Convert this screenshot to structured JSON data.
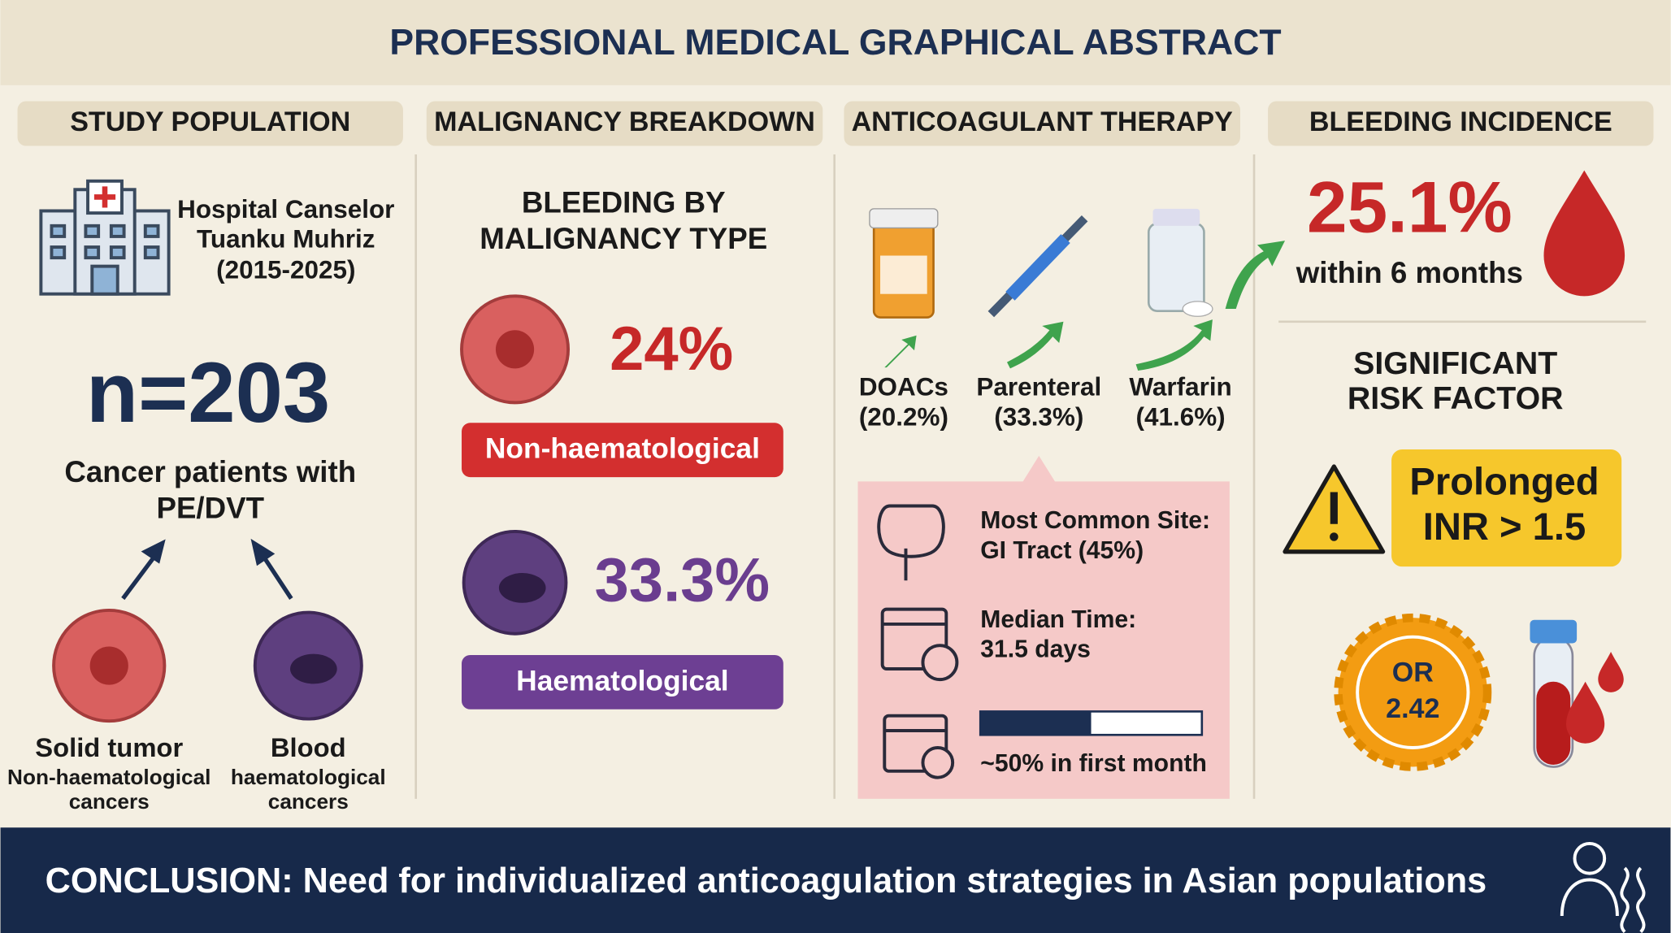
{
  "header": {
    "title": "PROFESSIONAL MEDICAL GRAPHICAL ABSTRACT"
  },
  "panels": [
    {
      "heading": "STUDY POPULATION",
      "hospital": [
        "Hospital Canselor",
        "Tuanku Muhriz",
        "(2015-2025)"
      ],
      "sample": "n=203",
      "description": [
        "Cancer patients with",
        "PE/DVT"
      ],
      "groups": [
        {
          "name": "Solid tumor",
          "detail": [
            "Non-haematological",
            "cancers"
          ]
        },
        {
          "name": "Blood",
          "detail": [
            "haematological",
            "cancers"
          ]
        }
      ]
    },
    {
      "heading": "MALIGNANCY BREAKDOWN",
      "subtitle": [
        "BLEEDING BY",
        "MALIGNANCY TYPE"
      ],
      "items": [
        {
          "rate": "24%",
          "label": "Non-haematological"
        },
        {
          "rate": "33.3%",
          "label": "Haematological"
        }
      ]
    },
    {
      "heading": "ANTICOAGULANT THERAPY",
      "drugs": [
        {
          "name": "DOACs",
          "rate": "(20.2%)"
        },
        {
          "name": "Parenteral",
          "rate": "(33.3%)"
        },
        {
          "name": "Warfarin",
          "rate": "(41.6%)"
        }
      ],
      "site": [
        "Most Common Site:",
        "GI Tract (45%)"
      ],
      "median": [
        "Median Time:",
        "31.5 days"
      ],
      "early": "~50% in first month"
    },
    {
      "heading": "BLEEDING INCIDENCE",
      "incidence": "25.1%",
      "window": "within 6 months",
      "risk_title": [
        "SIGNIFICANT",
        "RISK FACTOR"
      ],
      "risk_factor": [
        "Prolonged",
        "INR > 1.5"
      ],
      "odds": [
        "OR",
        "2.42"
      ]
    }
  ],
  "footer": {
    "conclusion": "CONCLUSION: Need for individualized anticoagulation strategies in Asian populations"
  }
}
